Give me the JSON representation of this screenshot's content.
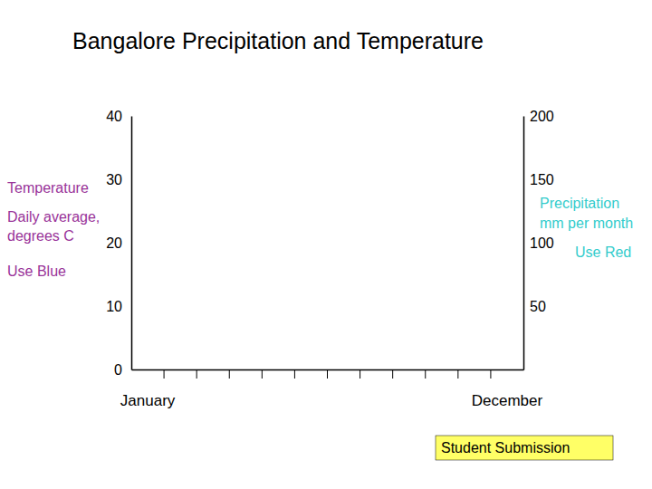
{
  "chart_data": {
    "type": "line",
    "title": "Bangalore Precipitation and Temperature",
    "categories": [
      "January",
      null,
      null,
      null,
      null,
      null,
      null,
      null,
      null,
      null,
      null,
      "December"
    ],
    "ylim": [
      0,
      40
    ],
    "yticks": [
      0,
      10,
      20,
      30,
      40
    ],
    "y_label": [
      "Temperature",
      "Daily average,",
      "degrees C"
    ],
    "y_note": "Use Blue",
    "y2lim": [
      0,
      200
    ],
    "y2ticks": [
      50,
      100,
      150,
      200
    ],
    "y2_label": [
      "Precipitation",
      "mm per month"
    ],
    "y2_note": "Use Red",
    "annotations": [
      "Student Submission"
    ]
  }
}
